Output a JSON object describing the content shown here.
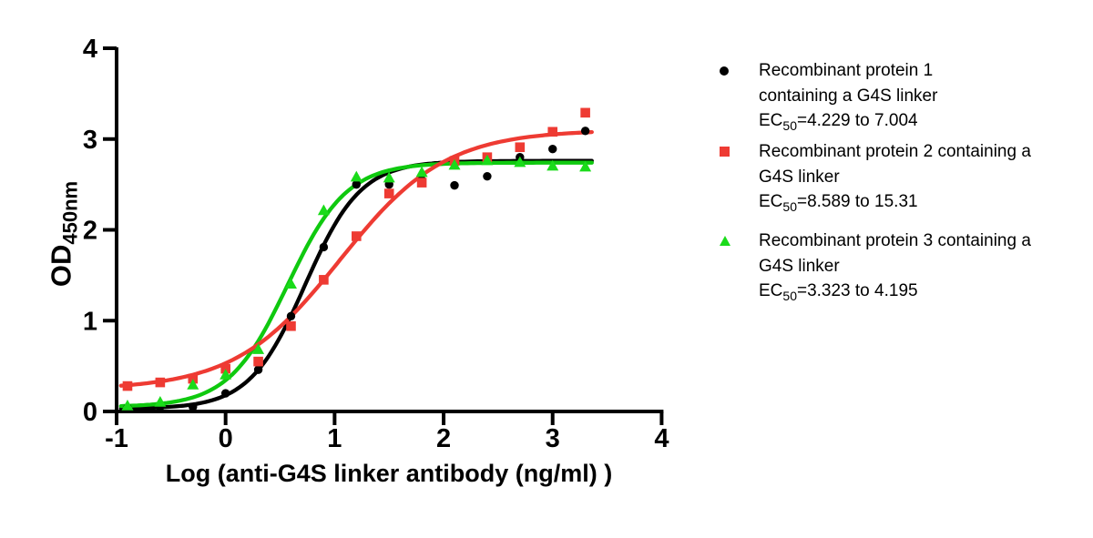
{
  "figure_title": "anti-G4S linker antibody ELISA binding curves",
  "axes": {
    "x_title": "Log (anti-G4S linker antibody (ng/ml) )",
    "y_title_base": "OD",
    "y_title_sub": "450nm",
    "x_tick_labels": [
      "-1",
      "0",
      "1",
      "2",
      "3",
      "4"
    ],
    "y_tick_labels": [
      "0",
      "1",
      "2",
      "3",
      "4"
    ]
  },
  "legend": {
    "items": [
      {
        "marker": "circle",
        "color": "#000000",
        "line1": "Recombinant protein 1",
        "line2": "containing a G4S linker",
        "ec_base": "EC",
        "ec_sub": "50",
        "ec_rest": "=4.229 to 7.004"
      },
      {
        "marker": "square",
        "color": "#ee3b33",
        "line1": "Recombinant protein 2 containing a",
        "line2": "G4S linker",
        "ec_base": "EC",
        "ec_sub": "50",
        "ec_rest": "=8.589 to 15.31"
      },
      {
        "marker": "triangle",
        "color": "#1adb1a",
        "line1": "Recombinant protein 3 containing a",
        "line2": "G4S linker",
        "ec_base": "EC",
        "ec_sub": "50",
        "ec_rest": "=3.323 to 4.195"
      }
    ]
  },
  "chart_data": {
    "type": "scatter",
    "title": "",
    "xlabel": "Log (anti-G4S linker antibody (ng/ml) )",
    "ylabel": "OD450nm",
    "xlim": [
      -1,
      4
    ],
    "ylim": [
      0,
      4
    ],
    "xticks": [
      -1,
      0,
      1,
      2,
      3,
      4
    ],
    "yticks": [
      0,
      1,
      2,
      3,
      4
    ],
    "grid": false,
    "legend_position": "right",
    "x": [
      -0.9,
      -0.6,
      -0.3,
      0.0,
      0.3,
      0.6,
      0.9,
      1.2,
      1.5,
      1.8,
      2.1,
      2.4,
      2.7,
      3.0,
      3.3
    ],
    "series": [
      {
        "name": "Recombinant protein 1 containing a G4S linker",
        "ec50_range": "4.229 to 7.004",
        "marker": "circle",
        "color": "#000000",
        "values": [
          0.04,
          0.05,
          0.05,
          0.2,
          0.46,
          1.05,
          1.81,
          2.5,
          2.5,
          2.55,
          2.49,
          2.59,
          2.8,
          2.89,
          3.09
        ],
        "fit": {
          "bottom": 0.03,
          "top": 2.76,
          "logec50": 0.73,
          "hill": 1.7,
          "xmin": -0.96,
          "xmax": 3.36
        }
      },
      {
        "name": "Recombinant protein 2 containing a G4S linker",
        "ec50_range": "8.589 to 15.31",
        "marker": "square",
        "color": "#ee3b33",
        "values": [
          0.28,
          0.32,
          0.36,
          0.47,
          0.55,
          0.94,
          1.45,
          1.93,
          2.4,
          2.52,
          2.76,
          2.8,
          2.91,
          3.08,
          3.29
        ],
        "fit": {
          "bottom": 0.24,
          "top": 3.1,
          "logec50": 1.05,
          "hill": 0.9,
          "xmin": -0.96,
          "xmax": 3.38
        }
      },
      {
        "name": "Recombinant protein 3 containing a G4S linker",
        "ec50_range": "3.323 to 4.195",
        "marker": "triangle",
        "color": "#1adb1a",
        "line_color": "#0fc90f",
        "values": [
          0.06,
          0.1,
          0.29,
          0.4,
          0.68,
          1.4,
          2.21,
          2.58,
          2.57,
          2.63,
          2.71,
          2.76,
          2.74,
          2.7,
          2.69
        ],
        "fit": {
          "bottom": 0.05,
          "top": 2.74,
          "logec50": 0.57,
          "hill": 1.6,
          "xmin": -0.96,
          "xmax": 3.36
        }
      }
    ]
  }
}
